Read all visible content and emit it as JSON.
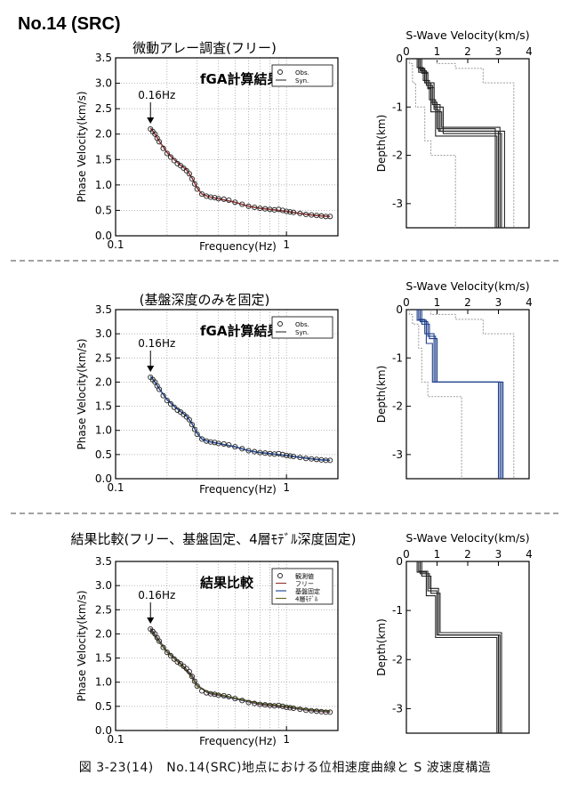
{
  "page": {
    "site_label": "No.14 (SRC)",
    "caption": "図 3-23(14)　No.14(SRC)地点における位相速度曲線と S 波速度構造"
  },
  "panels": [
    {
      "heading": "微動アレー調査(フリー)",
      "chart_title": "fGA計算結果",
      "arrow_label": "0.16Hz",
      "legend": [
        {
          "label": "Obs.",
          "marker": "circle"
        },
        {
          "label": "Syn.",
          "marker": "line",
          "color": "#444444"
        }
      ],
      "syn_color": "#9a3b3b",
      "profile_color": "#222222",
      "ref_color": "#9a9a9a"
    },
    {
      "heading": "(基盤深度のみを固定)",
      "chart_title": "fGA計算結果",
      "arrow_label": "0.16Hz",
      "legend": [
        {
          "label": "Obs.",
          "marker": "circle"
        },
        {
          "label": "Syn.",
          "marker": "line",
          "color": "#444444"
        }
      ],
      "syn_color": "#2a4f9a",
      "profile_color": "#1f3f8a",
      "ref_color": "#9a9a9a"
    },
    {
      "heading": "結果比較(フリー、基盤固定、4層ﾓﾃﾞﾙ深度固定)",
      "chart_title": "結果比較",
      "arrow_label": "0.16Hz",
      "legend": [
        {
          "label": "観測値",
          "marker": "circle"
        },
        {
          "label": "フリー",
          "marker": "line",
          "color": "#9a3b3b"
        },
        {
          "label": "基盤固定",
          "marker": "line",
          "color": "#2a4f9a"
        },
        {
          "label": "4層ﾓﾃﾞﾙ",
          "marker": "line",
          "color": "#6b6b2a"
        }
      ],
      "syn_color": "#7a3a3a",
      "profile_color": "#222222",
      "ref_color": "#9a9a9a"
    }
  ],
  "chart_data": [
    {
      "type": "scatter",
      "xlabel": "Frequency(Hz)",
      "ylabel": "Phase Velocity(km/s)",
      "xscale": "log",
      "xlim": [
        0.1,
        2
      ],
      "ylim": [
        0,
        3.5
      ],
      "xticks": [
        0.1,
        1
      ],
      "xtick_labels": [
        "0.1",
        "1"
      ],
      "yticks": [
        0,
        0.5,
        1,
        1.5,
        2,
        2.5,
        3,
        3.5
      ],
      "ytick_labels": [
        "0.0",
        "0.5",
        "1.0",
        "1.5",
        "2.0",
        "2.5",
        "3.0",
        "3.5"
      ],
      "grid": true,
      "series": [
        {
          "name": "Obs.",
          "x": [
            0.16,
            0.165,
            0.17,
            0.175,
            0.18,
            0.19,
            0.2,
            0.21,
            0.22,
            0.23,
            0.24,
            0.25,
            0.26,
            0.27,
            0.28,
            0.29,
            0.3,
            0.32,
            0.34,
            0.36,
            0.38,
            0.4,
            0.43,
            0.46,
            0.5,
            0.55,
            0.6,
            0.65,
            0.7,
            0.75,
            0.8,
            0.85,
            0.9,
            0.95,
            1.0,
            1.05,
            1.1,
            1.2,
            1.3,
            1.4,
            1.5,
            1.6,
            1.7,
            1.8
          ],
          "y": [
            2.1,
            2.05,
            2.0,
            1.92,
            1.85,
            1.72,
            1.62,
            1.55,
            1.48,
            1.42,
            1.38,
            1.33,
            1.28,
            1.22,
            1.12,
            1.02,
            0.92,
            0.82,
            0.78,
            0.76,
            0.75,
            0.73,
            0.72,
            0.7,
            0.66,
            0.62,
            0.58,
            0.56,
            0.54,
            0.53,
            0.52,
            0.51,
            0.52,
            0.5,
            0.48,
            0.47,
            0.46,
            0.44,
            0.42,
            0.41,
            0.4,
            0.39,
            0.38,
            0.38
          ]
        },
        {
          "name": "Syn.",
          "x": [
            0.16,
            0.17,
            0.18,
            0.2,
            0.22,
            0.24,
            0.26,
            0.28,
            0.3,
            0.32,
            0.35,
            0.4,
            0.5,
            0.6,
            0.7,
            0.8,
            0.9,
            1.0,
            1.2,
            1.4,
            1.6,
            1.8
          ],
          "y": [
            2.12,
            2.0,
            1.86,
            1.64,
            1.5,
            1.39,
            1.3,
            1.14,
            0.94,
            0.82,
            0.77,
            0.73,
            0.66,
            0.58,
            0.54,
            0.52,
            0.5,
            0.48,
            0.44,
            0.41,
            0.39,
            0.38
          ]
        }
      ]
    },
    {
      "type": "line",
      "title": "S-Wave Velocity(km/s)",
      "ylabel": "Depth(km)",
      "xlim": [
        0,
        4
      ],
      "ylim": [
        -3.5,
        0
      ],
      "xticks": [
        0,
        1,
        2,
        3,
        4
      ],
      "yticks": [
        0,
        -1,
        -2,
        -3
      ],
      "ytick_labels": [
        "0",
        "-1",
        "-2",
        "-3"
      ],
      "profiles": [
        {
          "v": [
            0.4,
            0.6,
            0.8,
            1.0,
            2.9
          ],
          "d": [
            -0.2,
            -0.5,
            -0.9,
            -1.45,
            -3.5
          ]
        },
        {
          "v": [
            0.45,
            0.65,
            0.85,
            1.1,
            3.0
          ],
          "d": [
            -0.25,
            -0.55,
            -0.95,
            -1.5,
            -3.5
          ]
        },
        {
          "v": [
            0.5,
            0.7,
            0.9,
            1.2,
            3.1
          ],
          "d": [
            -0.3,
            -0.6,
            -1.0,
            -1.55,
            -3.5
          ]
        },
        {
          "v": [
            0.35,
            0.55,
            0.75,
            0.95,
            2.95
          ],
          "d": [
            -0.18,
            -0.45,
            -0.85,
            -1.6,
            -3.5
          ]
        },
        {
          "v": [
            0.45,
            0.6,
            0.9,
            1.05,
            3.2
          ],
          "d": [
            -0.22,
            -0.5,
            -1.05,
            -1.5,
            -3.5
          ]
        },
        {
          "v": [
            0.4,
            0.7,
            0.8,
            1.15,
            3.05
          ],
          "d": [
            -0.28,
            -0.62,
            -1.1,
            -1.42,
            -3.5
          ]
        }
      ],
      "bounds": [
        {
          "v": [
            0.1,
            0.2,
            0.3,
            0.6,
            0.8,
            1.6
          ],
          "d": [
            -0.1,
            -0.5,
            -1.0,
            -1.7,
            -2.0,
            -3.5
          ]
        },
        {
          "v": [
            1.0,
            1.6,
            2.5,
            3.5,
            3.5
          ],
          "d": [
            -0.1,
            -0.2,
            -0.5,
            -1.4,
            -3.5
          ]
        }
      ]
    },
    {
      "type": "scatter",
      "xlabel": "Frequency(Hz)",
      "ylabel": "Phase Velocity(km/s)",
      "xscale": "log",
      "xlim": [
        0.1,
        2
      ],
      "ylim": [
        0,
        3.5
      ],
      "xticks": [
        0.1,
        1
      ],
      "xtick_labels": [
        "0.1",
        "1"
      ],
      "yticks": [
        0,
        0.5,
        1,
        1.5,
        2,
        2.5,
        3,
        3.5
      ],
      "ytick_labels": [
        "0.0",
        "0.5",
        "1.0",
        "1.5",
        "2.0",
        "2.5",
        "3.0",
        "3.5"
      ],
      "grid": true,
      "series": [
        {
          "name": "Obs.",
          "x": [
            0.16,
            0.165,
            0.17,
            0.175,
            0.18,
            0.19,
            0.2,
            0.21,
            0.22,
            0.23,
            0.24,
            0.25,
            0.26,
            0.27,
            0.28,
            0.29,
            0.3,
            0.32,
            0.34,
            0.36,
            0.38,
            0.4,
            0.43,
            0.46,
            0.5,
            0.55,
            0.6,
            0.65,
            0.7,
            0.75,
            0.8,
            0.85,
            0.9,
            0.95,
            1.0,
            1.05,
            1.1,
            1.2,
            1.3,
            1.4,
            1.5,
            1.6,
            1.7,
            1.8
          ],
          "y": [
            2.1,
            2.05,
            2.0,
            1.92,
            1.85,
            1.72,
            1.62,
            1.55,
            1.48,
            1.42,
            1.38,
            1.33,
            1.28,
            1.22,
            1.12,
            1.02,
            0.92,
            0.82,
            0.78,
            0.76,
            0.75,
            0.73,
            0.72,
            0.7,
            0.66,
            0.62,
            0.58,
            0.56,
            0.54,
            0.53,
            0.52,
            0.51,
            0.52,
            0.5,
            0.48,
            0.47,
            0.46,
            0.44,
            0.42,
            0.41,
            0.4,
            0.39,
            0.38,
            0.38
          ]
        },
        {
          "name": "Syn.",
          "x": [
            0.16,
            0.17,
            0.18,
            0.2,
            0.22,
            0.24,
            0.26,
            0.28,
            0.3,
            0.32,
            0.35,
            0.4,
            0.5,
            0.6,
            0.7,
            0.8,
            0.9,
            1.0,
            1.2,
            1.4,
            1.6,
            1.8
          ],
          "y": [
            2.12,
            2.0,
            1.86,
            1.64,
            1.5,
            1.39,
            1.3,
            1.14,
            0.94,
            0.82,
            0.77,
            0.73,
            0.66,
            0.58,
            0.54,
            0.52,
            0.5,
            0.48,
            0.44,
            0.41,
            0.39,
            0.38
          ]
        }
      ]
    },
    {
      "type": "line",
      "title": "S-Wave Velocity(km/s)",
      "ylabel": "Depth(km)",
      "xlim": [
        0,
        4
      ],
      "ylim": [
        -3.5,
        0
      ],
      "xticks": [
        0,
        1,
        2,
        3,
        4
      ],
      "yticks": [
        0,
        -1,
        -2,
        -3
      ],
      "ytick_labels": [
        "0",
        "-1",
        "-2",
        "-3"
      ],
      "profiles": [
        {
          "v": [
            0.4,
            0.6,
            0.9,
            3.0
          ],
          "d": [
            -0.2,
            -0.5,
            -1.5,
            -3.5
          ]
        },
        {
          "v": [
            0.45,
            0.7,
            0.95,
            3.05
          ],
          "d": [
            -0.25,
            -0.55,
            -1.5,
            -3.5
          ]
        },
        {
          "v": [
            0.5,
            0.75,
            1.0,
            3.1
          ],
          "d": [
            -0.3,
            -0.6,
            -1.5,
            -3.5
          ]
        },
        {
          "v": [
            0.35,
            0.65,
            0.85,
            3.15
          ],
          "d": [
            -0.22,
            -0.7,
            -1.5,
            -3.5
          ]
        }
      ],
      "bounds": [
        {
          "v": [
            0.1,
            0.2,
            0.4,
            0.5,
            0.7,
            1.8
          ],
          "d": [
            -0.1,
            -0.3,
            -0.8,
            -1.5,
            -1.8,
            -3.5
          ]
        },
        {
          "v": [
            0.8,
            1.6,
            2.5,
            3.5,
            3.5
          ],
          "d": [
            -0.1,
            -0.2,
            -0.5,
            -1.5,
            -3.5
          ]
        }
      ]
    },
    {
      "type": "scatter",
      "xlabel": "Frequency(Hz)",
      "ylabel": "Phase Velocity(km/s)",
      "xscale": "log",
      "xlim": [
        0.1,
        2
      ],
      "ylim": [
        0,
        3.5
      ],
      "xticks": [
        0.1,
        1
      ],
      "xtick_labels": [
        "0.1",
        "1"
      ],
      "yticks": [
        0,
        0.5,
        1,
        1.5,
        2,
        2.5,
        3,
        3.5
      ],
      "ytick_labels": [
        "0.0",
        "0.5",
        "1.0",
        "1.5",
        "2.0",
        "2.5",
        "3.0",
        "3.5"
      ],
      "grid": true,
      "series": [
        {
          "name": "観測値",
          "x": [
            0.16,
            0.165,
            0.17,
            0.175,
            0.18,
            0.19,
            0.2,
            0.21,
            0.22,
            0.23,
            0.24,
            0.25,
            0.26,
            0.27,
            0.28,
            0.29,
            0.3,
            0.32,
            0.34,
            0.36,
            0.38,
            0.4,
            0.43,
            0.46,
            0.5,
            0.55,
            0.6,
            0.65,
            0.7,
            0.75,
            0.8,
            0.85,
            0.9,
            0.95,
            1.0,
            1.05,
            1.1,
            1.2,
            1.3,
            1.4,
            1.5,
            1.6,
            1.7,
            1.8
          ],
          "y": [
            2.1,
            2.05,
            2.0,
            1.92,
            1.85,
            1.72,
            1.62,
            1.55,
            1.48,
            1.42,
            1.38,
            1.33,
            1.28,
            1.22,
            1.12,
            1.02,
            0.92,
            0.82,
            0.78,
            0.76,
            0.75,
            0.73,
            0.72,
            0.7,
            0.66,
            0.62,
            0.58,
            0.56,
            0.54,
            0.53,
            0.52,
            0.51,
            0.52,
            0.5,
            0.48,
            0.47,
            0.46,
            0.44,
            0.42,
            0.41,
            0.4,
            0.39,
            0.38,
            0.38
          ]
        },
        {
          "name": "フリー",
          "x": [
            0.16,
            0.18,
            0.2,
            0.24,
            0.28,
            0.3,
            0.35,
            0.4,
            0.5,
            0.7,
            1.0,
            1.4,
            1.8
          ],
          "y": [
            2.12,
            1.86,
            1.64,
            1.39,
            1.14,
            0.94,
            0.77,
            0.73,
            0.66,
            0.54,
            0.48,
            0.41,
            0.38
          ]
        },
        {
          "name": "基盤固定",
          "x": [
            0.16,
            0.18,
            0.2,
            0.24,
            0.28,
            0.3,
            0.35,
            0.4,
            0.5,
            0.7,
            1.0,
            1.4,
            1.8
          ],
          "y": [
            2.1,
            1.85,
            1.63,
            1.38,
            1.12,
            0.93,
            0.78,
            0.74,
            0.66,
            0.55,
            0.49,
            0.42,
            0.39
          ]
        },
        {
          "name": "4層ﾓﾃﾞﾙ",
          "x": [
            0.16,
            0.18,
            0.2,
            0.24,
            0.28,
            0.3,
            0.35,
            0.4,
            0.5,
            0.7,
            1.0,
            1.4,
            1.8
          ],
          "y": [
            2.08,
            1.83,
            1.62,
            1.37,
            1.1,
            0.92,
            0.79,
            0.75,
            0.67,
            0.56,
            0.5,
            0.43,
            0.4
          ]
        }
      ]
    },
    {
      "type": "line",
      "title": "S-Wave Velocity(km/s)",
      "ylabel": "Depth(km)",
      "xlim": [
        0,
        4
      ],
      "ylim": [
        -3.5,
        0
      ],
      "xticks": [
        0,
        1,
        2,
        3,
        4
      ],
      "yticks": [
        0,
        -1,
        -2,
        -3
      ],
      "ytick_labels": [
        "0",
        "-1",
        "-2",
        "-3"
      ],
      "profiles": [
        {
          "v": [
            0.4,
            0.7,
            1.0,
            3.0
          ],
          "d": [
            -0.2,
            -0.6,
            -1.5,
            -3.5
          ]
        },
        {
          "v": [
            0.45,
            0.75,
            1.05,
            3.05
          ],
          "d": [
            -0.25,
            -0.55,
            -1.5,
            -3.5
          ]
        },
        {
          "v": [
            0.5,
            0.8,
            1.1,
            3.1
          ],
          "d": [
            -0.3,
            -0.65,
            -1.45,
            -3.5
          ]
        },
        {
          "v": [
            0.35,
            0.65,
            0.95,
            2.95
          ],
          "d": [
            -0.22,
            -0.7,
            -1.55,
            -3.5
          ]
        }
      ],
      "bounds": []
    }
  ]
}
